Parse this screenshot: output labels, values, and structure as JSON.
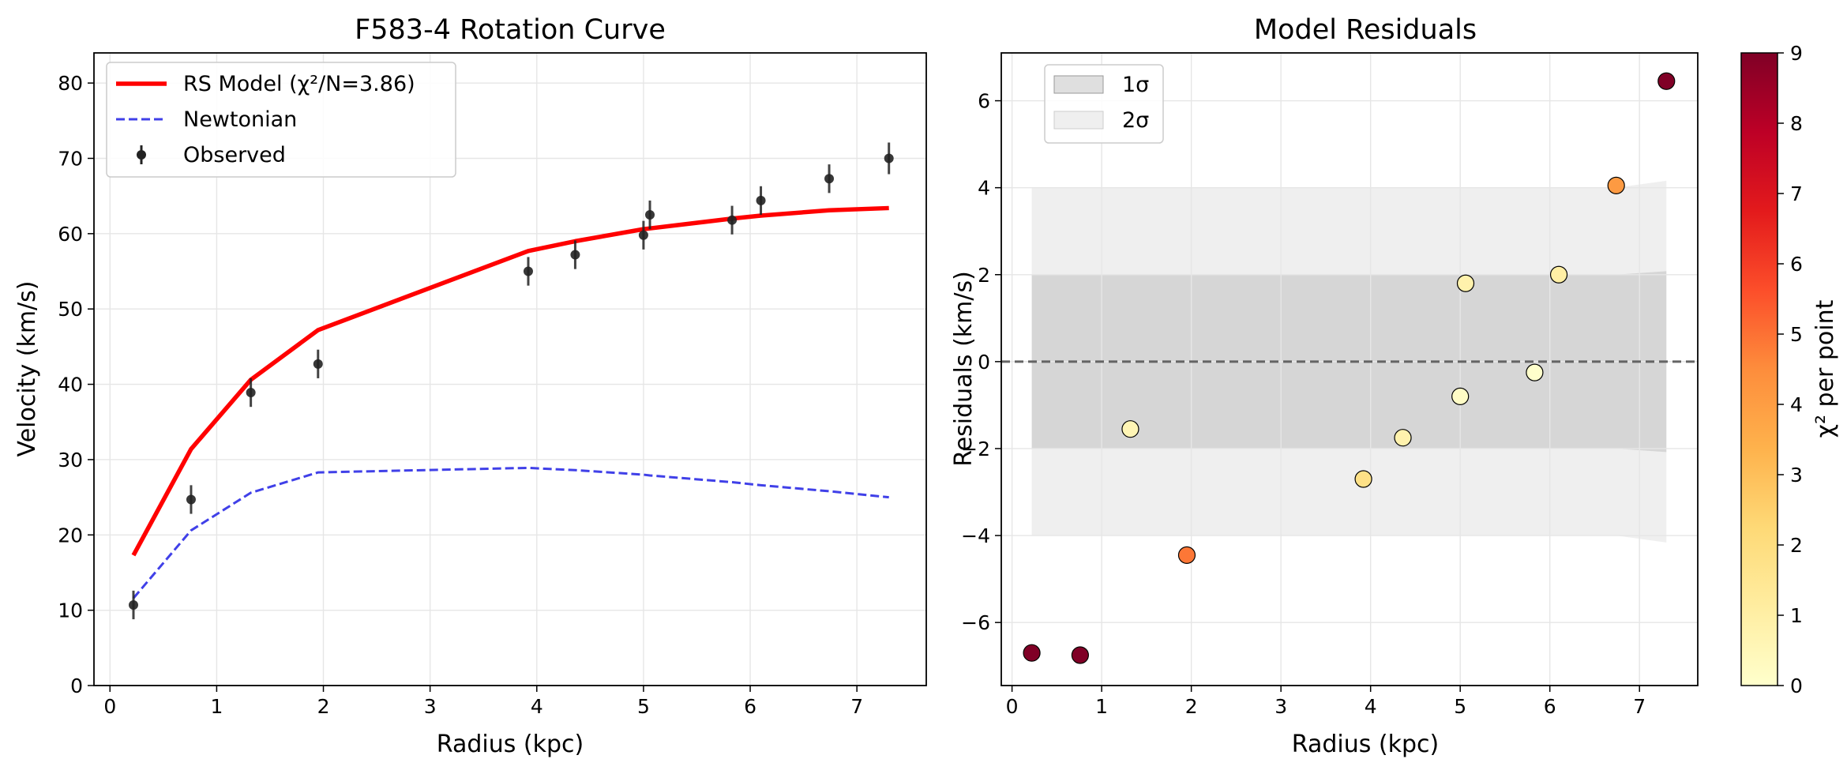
{
  "chart_data": [
    {
      "type": "line",
      "title": "F583-4 Rotation Curve",
      "xlabel": "Radius (kpc)",
      "ylabel": "Velocity (km/s)",
      "xlim": [
        -0.15,
        7.65
      ],
      "ylim": [
        0,
        84
      ],
      "xticks": [
        "0",
        "1",
        "2",
        "3",
        "4",
        "5",
        "6",
        "7"
      ],
      "yticks": [
        "0",
        "10",
        "20",
        "30",
        "40",
        "50",
        "60",
        "70",
        "80"
      ],
      "grid": true,
      "legend_position": "upper-left",
      "series": [
        {
          "name": "RS Model (χ²/N=3.86)",
          "kind": "line",
          "color": "#ff0000",
          "x": [
            0.22,
            0.76,
            1.32,
            1.95,
            3.92,
            4.36,
            5.0,
            5.06,
            5.83,
            6.1,
            6.74,
            7.3
          ],
          "y": [
            17.3,
            31.4,
            40.6,
            47.2,
            57.7,
            59.0,
            60.6,
            60.7,
            62.0,
            62.4,
            63.1,
            63.4
          ]
        },
        {
          "name": "Newtonian",
          "kind": "dashed-line",
          "color": "#4040e8",
          "x": [
            0.22,
            0.76,
            1.32,
            1.95,
            3.92,
            4.36,
            5.0,
            5.06,
            5.83,
            6.1,
            6.74,
            7.3
          ],
          "y": [
            11.6,
            20.6,
            25.6,
            28.3,
            28.9,
            28.6,
            28.0,
            27.9,
            27.0,
            26.6,
            25.8,
            25.0
          ]
        },
        {
          "name": "Observed",
          "kind": "errorbar",
          "color": "#222222",
          "x": [
            0.22,
            0.76,
            1.32,
            1.95,
            3.92,
            4.36,
            5.0,
            5.06,
            5.83,
            6.1,
            6.74,
            7.3
          ],
          "y": [
            10.7,
            24.7,
            38.9,
            42.7,
            55.0,
            57.2,
            59.8,
            62.5,
            61.8,
            64.4,
            67.3,
            70.0
          ],
          "err": [
            1.9,
            1.9,
            1.9,
            1.9,
            1.9,
            1.9,
            1.9,
            1.9,
            1.9,
            1.9,
            1.9,
            2.1
          ]
        }
      ]
    },
    {
      "type": "scatter",
      "title": "Model Residuals",
      "xlabel": "Radius (kpc)",
      "ylabel": "Residuals (km/s)",
      "xlim": [
        -0.12,
        7.65
      ],
      "ylim": [
        -7.45,
        7.1
      ],
      "xticks": [
        "0",
        "1",
        "2",
        "3",
        "4",
        "5",
        "6",
        "7"
      ],
      "yticks": [
        "−6",
        "−4",
        "−2",
        "0",
        "2",
        "4",
        "6"
      ],
      "grid": true,
      "legend_position": "upper-left",
      "zero_line": 0,
      "bands": [
        {
          "name": "1σ",
          "sigma": 1,
          "color": "#b8b8b8"
        },
        {
          "name": "2σ",
          "sigma": 2,
          "color": "#dcdcdc"
        }
      ],
      "band_x": [
        0.22,
        0.76,
        1.32,
        1.95,
        3.92,
        4.36,
        5.0,
        5.06,
        5.83,
        6.1,
        6.74,
        7.3
      ],
      "band_sigma": [
        2.0,
        2.0,
        2.0,
        2.0,
        2.0,
        2.0,
        2.0,
        2.0,
        2.0,
        2.0,
        2.0,
        2.08
      ],
      "points": {
        "x": [
          0.22,
          0.76,
          1.32,
          1.95,
          3.92,
          4.36,
          5.0,
          5.06,
          5.83,
          6.1,
          6.74,
          7.3
        ],
        "residual": [
          -6.7,
          -6.75,
          -1.55,
          -4.45,
          -2.7,
          -1.75,
          -0.8,
          1.8,
          -0.25,
          2.0,
          4.05,
          6.45
        ],
        "chi2": [
          11.2,
          11.4,
          0.6,
          4.9,
          1.8,
          0.8,
          0.16,
          0.81,
          0.02,
          1.0,
          4.1,
          9.6
        ]
      },
      "colorbar": {
        "label": "χ² per point",
        "range": [
          0,
          9
        ],
        "ticks": [
          "0",
          "1",
          "2",
          "3",
          "4",
          "5",
          "6",
          "7",
          "8",
          "9"
        ],
        "colormap": "YlOrRd"
      }
    }
  ]
}
